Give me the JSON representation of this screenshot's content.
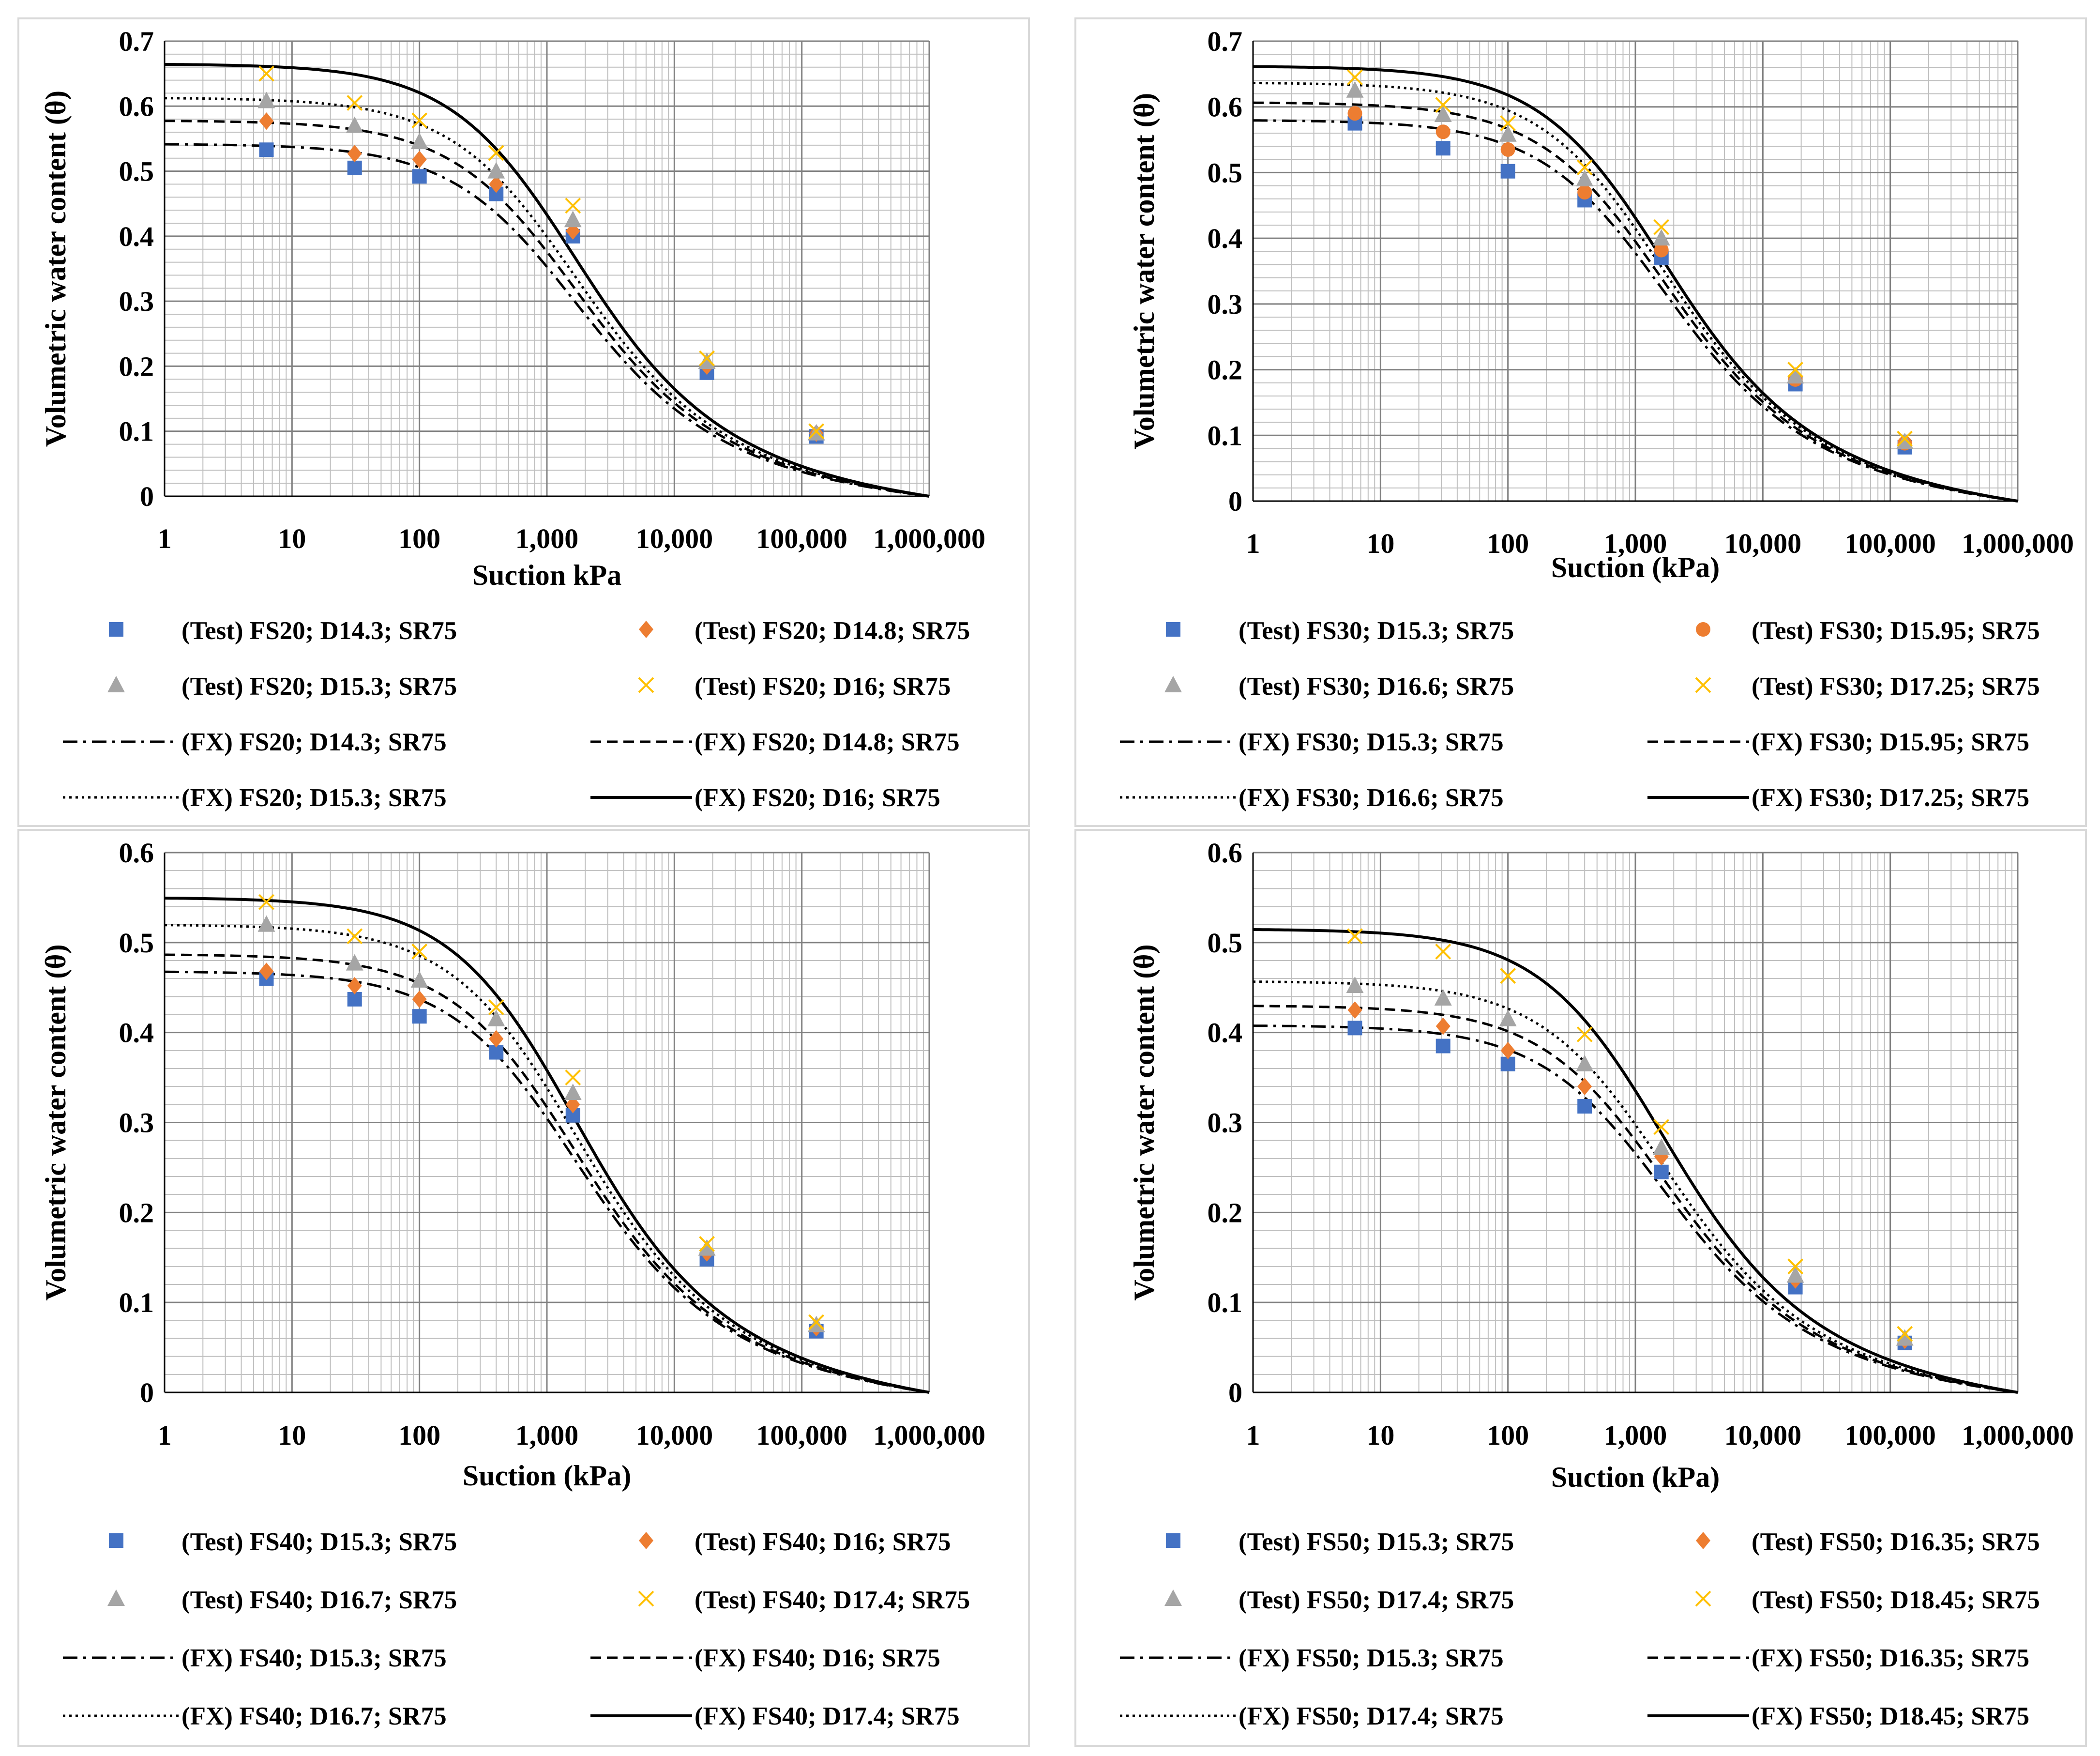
{
  "colors": {
    "test_series": [
      "#4472C4",
      "#ED7D31",
      "#A5A5A5",
      "#FFC000"
    ],
    "fit_lines": "#000000",
    "grid_major": "#808080",
    "grid_minor": "#bfbfbf"
  },
  "chart_data": [
    {
      "type": "scatter",
      "x_scale": "log",
      "xlim": [
        1,
        1000000
      ],
      "ylim": [
        0,
        0.7
      ],
      "yticks": [
        "0",
        "0.1",
        "0.2",
        "0.3",
        "0.4",
        "0.5",
        "0.6",
        "0.7"
      ],
      "xticks": [
        "1",
        "10",
        "100",
        "1,000",
        "10,000",
        "100,000",
        "1,000,000"
      ],
      "xlabel": "Suction kPa",
      "ylabel": "Volumetric water content (θ)",
      "test_series": [
        {
          "name": "(Test) FS20; D14.3; SR75",
          "marker": "square",
          "x": [
            6.3,
            31,
            100,
            400,
            1600,
            18000,
            130000
          ],
          "y": [
            0.533,
            0.505,
            0.492,
            0.465,
            0.4,
            0.19,
            0.092
          ]
        },
        {
          "name": "(Test) FS20; D14.8; SR75",
          "marker": "diamond",
          "x": [
            6.3,
            31,
            100,
            400,
            1600,
            18000,
            130000
          ],
          "y": [
            0.577,
            0.527,
            0.518,
            0.48,
            0.408,
            0.2,
            0.097
          ]
        },
        {
          "name": "(Test) FS20; D15.3; SR75",
          "marker": "triangle",
          "x": [
            6.3,
            31,
            100,
            400,
            1600,
            18000,
            130000
          ],
          "y": [
            0.608,
            0.57,
            0.545,
            0.5,
            0.425,
            0.207,
            0.097
          ]
        },
        {
          "name": "(Test) FS20; D16; SR75",
          "marker": "x",
          "x": [
            6.3,
            31,
            100,
            400,
            1600,
            18000,
            130000
          ],
          "y": [
            0.65,
            0.605,
            0.578,
            0.528,
            0.447,
            0.212,
            0.1
          ]
        }
      ],
      "fit_series": [
        {
          "name": "(FX) FS20; D14.3; SR75",
          "dash": "dashdot",
          "theta_s": 0.542
        },
        {
          "name": "(FX) FS20; D14.8; SR75",
          "dash": "dash",
          "theta_s": 0.578
        },
        {
          "name": "(FX) FS20; D15.3; SR75",
          "dash": "dot",
          "theta_s": 0.613
        },
        {
          "name": "(FX) FS20; D16; SR75",
          "dash": "solid",
          "theta_s": 0.665
        }
      ]
    },
    {
      "type": "scatter",
      "x_scale": "log",
      "xlim": [
        1,
        1000000
      ],
      "ylim": [
        0,
        0.7
      ],
      "yticks": [
        "0",
        "0.1",
        "0.2",
        "0.3",
        "0.4",
        "0.5",
        "0.6",
        "0.7"
      ],
      "xticks": [
        "1",
        "10",
        "100",
        "1,000",
        "10,000",
        "100,000",
        "1,000,000"
      ],
      "xlabel": "Suction (kPa)",
      "ylabel": "Volumetric water content (θ)",
      "test_series": [
        {
          "name": "(Test) FS30; D15.3; SR75",
          "marker": "square",
          "x": [
            6.3,
            31,
            100,
            400,
            1600,
            18000,
            130000
          ],
          "y": [
            0.575,
            0.537,
            0.502,
            0.458,
            0.37,
            0.178,
            0.082
          ]
        },
        {
          "name": "(Test) FS30; D15.95; SR75",
          "marker": "circle",
          "x": [
            6.3,
            31,
            100,
            400,
            1600,
            18000,
            130000
          ],
          "y": [
            0.59,
            0.562,
            0.535,
            0.47,
            0.382,
            0.185,
            0.088
          ]
        },
        {
          "name": "(Test) FS30; D16.6; SR75",
          "marker": "triangle",
          "x": [
            6.3,
            31,
            100,
            400,
            1600,
            18000,
            130000
          ],
          "y": [
            0.625,
            0.588,
            0.558,
            0.49,
            0.4,
            0.19,
            0.09
          ]
        },
        {
          "name": "(Test) FS30; D17.25; SR75",
          "marker": "x",
          "x": [
            6.3,
            31,
            100,
            400,
            1600,
            18000,
            130000
          ],
          "y": [
            0.645,
            0.603,
            0.575,
            0.508,
            0.417,
            0.2,
            0.095
          ]
        }
      ],
      "fit_series": [
        {
          "name": "(FX) FS30; D15.3; SR75",
          "dash": "dashdot",
          "theta_s": 0.58
        },
        {
          "name": "(FX) FS30; D15.95; SR75",
          "dash": "dash",
          "theta_s": 0.607
        },
        {
          "name": "(FX) FS30; D16.6; SR75",
          "dash": "dot",
          "theta_s": 0.637
        },
        {
          "name": "(FX) FS30; D17.25; SR75",
          "dash": "solid",
          "theta_s": 0.662
        }
      ]
    },
    {
      "type": "scatter",
      "x_scale": "log",
      "xlim": [
        1,
        1000000
      ],
      "ylim": [
        0,
        0.6
      ],
      "yticks": [
        "0",
        "0.1",
        "0.2",
        "0.3",
        "0.4",
        "0.5",
        "0.6"
      ],
      "xticks": [
        "1",
        "10",
        "100",
        "1,000",
        "10,000",
        "100,000",
        "1,000,000"
      ],
      "xlabel": "Suction (kPa)",
      "ylabel": "Volumetric water content (θ)",
      "test_series": [
        {
          "name": "(Test) FS40; D15.3; SR75",
          "marker": "square",
          "x": [
            6.3,
            31,
            100,
            400,
            1600,
            18000,
            130000
          ],
          "y": [
            0.46,
            0.437,
            0.418,
            0.378,
            0.308,
            0.148,
            0.068
          ]
        },
        {
          "name": "(Test) FS40; D16; SR75",
          "marker": "diamond",
          "x": [
            6.3,
            31,
            100,
            400,
            1600,
            18000,
            130000
          ],
          "y": [
            0.468,
            0.452,
            0.437,
            0.393,
            0.32,
            0.155,
            0.072
          ]
        },
        {
          "name": "(Test) FS40; D16.7; SR75",
          "marker": "triangle",
          "x": [
            6.3,
            31,
            100,
            400,
            1600,
            18000,
            130000
          ],
          "y": [
            0.52,
            0.477,
            0.458,
            0.415,
            0.333,
            0.16,
            0.075
          ]
        },
        {
          "name": "(Test) FS40; D17.4; SR75",
          "marker": "x",
          "x": [
            6.3,
            31,
            100,
            400,
            1600,
            18000,
            130000
          ],
          "y": [
            0.545,
            0.507,
            0.49,
            0.428,
            0.35,
            0.165,
            0.078
          ]
        }
      ],
      "fit_series": [
        {
          "name": "(FX) FS40; D15.3; SR75",
          "dash": "dashdot",
          "theta_s": 0.468
        },
        {
          "name": "(FX) FS40; D16; SR75",
          "dash": "dash",
          "theta_s": 0.487
        },
        {
          "name": "(FX) FS40; D16.7; SR75",
          "dash": "dot",
          "theta_s": 0.52
        },
        {
          "name": "(FX) FS40; D17.4; SR75",
          "dash": "solid",
          "theta_s": 0.55
        }
      ]
    },
    {
      "type": "scatter",
      "x_scale": "log",
      "xlim": [
        1,
        1000000
      ],
      "ylim": [
        0,
        0.6
      ],
      "yticks": [
        "0",
        "0.1",
        "0.2",
        "0.3",
        "0.4",
        "0.5",
        "0.6"
      ],
      "xticks": [
        "1",
        "10",
        "100",
        "1,000",
        "10,000",
        "100,000",
        "1,000,000"
      ],
      "xlabel": "Suction (kPa)",
      "ylabel": "Volumetric water content (θ)",
      "test_series": [
        {
          "name": "(Test) FS50; D15.3; SR75",
          "marker": "square",
          "x": [
            6.3,
            31,
            100,
            400,
            1600,
            18000,
            130000
          ],
          "y": [
            0.405,
            0.385,
            0.365,
            0.318,
            0.245,
            0.117,
            0.055
          ]
        },
        {
          "name": "(Test) FS50; D16.35; SR75",
          "marker": "diamond",
          "x": [
            6.3,
            31,
            100,
            400,
            1600,
            18000,
            130000
          ],
          "y": [
            0.425,
            0.407,
            0.38,
            0.34,
            0.262,
            0.125,
            0.058
          ]
        },
        {
          "name": "(Test) FS50; D17.4; SR75",
          "marker": "triangle",
          "x": [
            6.3,
            31,
            100,
            400,
            1600,
            18000,
            130000
          ],
          "y": [
            0.452,
            0.438,
            0.415,
            0.365,
            0.272,
            0.13,
            0.06
          ]
        },
        {
          "name": "(Test) FS50; D18.45; SR75",
          "marker": "x",
          "x": [
            6.3,
            31,
            100,
            400,
            1600,
            18000,
            130000
          ],
          "y": [
            0.507,
            0.49,
            0.463,
            0.398,
            0.295,
            0.14,
            0.065
          ]
        }
      ],
      "fit_series": [
        {
          "name": "(FX) FS50; D15.3; SR75",
          "dash": "dashdot",
          "theta_s": 0.408
        },
        {
          "name": "(FX) FS50; D16.35; SR75",
          "dash": "dash",
          "theta_s": 0.43
        },
        {
          "name": "(FX) FS50; D17.4; SR75",
          "dash": "dot",
          "theta_s": 0.457
        },
        {
          "name": "(FX) FS50; D18.45; SR75",
          "dash": "solid",
          "theta_s": 0.515
        }
      ]
    }
  ]
}
